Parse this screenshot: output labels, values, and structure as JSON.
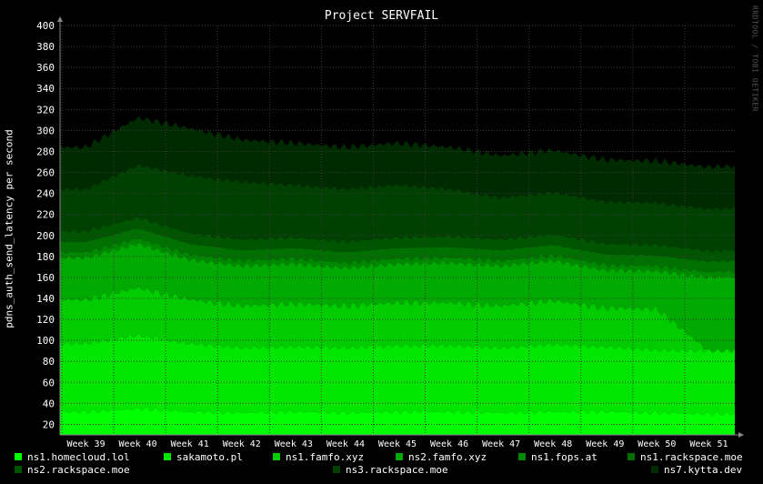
{
  "chart_data": {
    "type": "area",
    "stacked": true,
    "title": "Project SERVFAIL",
    "ylabel": "pdns_auth_send_latency per second",
    "xlabel": "",
    "watermark": "RRDTOOL / TOBI OETIKER",
    "ylim": [
      10,
      400
    ],
    "yticks": [
      20,
      40,
      60,
      80,
      100,
      120,
      140,
      160,
      180,
      200,
      220,
      240,
      260,
      280,
      300,
      320,
      340,
      360,
      380,
      400
    ],
    "categories": [
      "Week 39",
      "Week 40",
      "Week 41",
      "Week 42",
      "Week 43",
      "Week 44",
      "Week 45",
      "Week 46",
      "Week 47",
      "Week 48",
      "Week 49",
      "Week 50",
      "Week 51"
    ],
    "grid": true,
    "legend_position": "bottom",
    "series": [
      {
        "name": "ns1.homecloud.lol",
        "color": "#00ff00",
        "values": [
          22,
          25,
          22,
          21,
          22,
          21,
          22,
          22,
          21,
          22,
          22,
          21,
          20
        ]
      },
      {
        "name": "sakamoto.pl",
        "color": "#00e600",
        "values": [
          65,
          70,
          65,
          62,
          62,
          62,
          63,
          63,
          62,
          64,
          62,
          60,
          60
        ]
      },
      {
        "name": "ns1.famfo.xyz",
        "color": "#00cc00",
        "values": [
          42,
          45,
          42,
          40,
          41,
          40,
          41,
          41,
          40,
          42,
          37,
          39,
          0
        ]
      },
      {
        "name": "ns2.famfo.xyz",
        "color": "#00aa00",
        "values": [
          40,
          42,
          38,
          38,
          38,
          36,
          37,
          38,
          38,
          38,
          36,
          36,
          70
        ]
      },
      {
        "name": "ns1.fops.at",
        "color": "#008800",
        "values": [
          5,
          5,
          5,
          5,
          5,
          5,
          5,
          5,
          5,
          5,
          5,
          5,
          5
        ]
      },
      {
        "name": "ns1.rackspace.moe",
        "color": "#007000",
        "values": [
          10,
          10,
          10,
          10,
          10,
          10,
          10,
          10,
          10,
          10,
          10,
          10,
          10
        ]
      },
      {
        "name": "ns2.rackspace.moe",
        "color": "#005500",
        "values": [
          10,
          10,
          10,
          10,
          10,
          10,
          10,
          10,
          10,
          10,
          10,
          10,
          10
        ]
      },
      {
        "name": "ns3.rackspace.moe",
        "color": "#004000",
        "values": [
          40,
          50,
          55,
          55,
          50,
          50,
          50,
          45,
          40,
          40,
          40,
          40,
          40
        ]
      },
      {
        "name": "ns7.kytta.dev",
        "color": "#002a00",
        "values": [
          40,
          45,
          45,
          40,
          40,
          40,
          40,
          40,
          40,
          40,
          40,
          40,
          40
        ]
      }
    ]
  }
}
